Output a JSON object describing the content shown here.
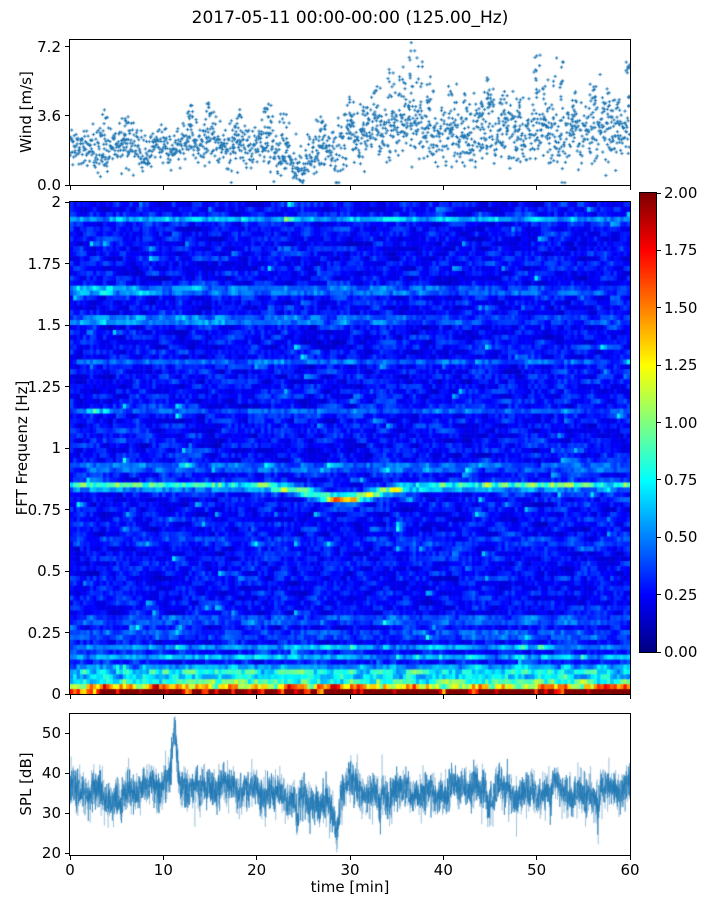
{
  "title": "2017-05-11 00:00-00:00 (125.00_Hz)",
  "chart_data": [
    {
      "id": "wind",
      "type": "scatter",
      "marker": "+",
      "marker_color": "#1f77b4",
      "x_range": [
        0,
        60
      ],
      "y_range": [
        0,
        7.56
      ],
      "ylabel": "Wind [m/s]",
      "ytick_values": [
        0.0,
        3.6,
        7.2
      ],
      "ytick_labels": [
        "0.0",
        "3.6",
        "7.2"
      ],
      "approx_n_points": 1700,
      "trend_per_min": [
        2.1,
        1.9,
        2.0,
        1.7,
        1.5,
        1.9,
        2.3,
        2.1,
        1.7,
        2.0,
        2.2,
        1.8,
        2.1,
        2.4,
        2.0,
        2.4,
        2.2,
        1.8,
        2.0,
        2.2,
        2.0,
        2.3,
        1.8,
        1.5,
        1.1,
        1.0,
        1.5,
        1.9,
        1.6,
        2.1,
        2.5,
        2.3,
        2.7,
        2.9,
        2.7,
        3.0,
        3.2,
        3.1,
        2.7,
        2.4,
        2.6,
        2.8,
        2.4,
        2.6,
        2.7,
        2.9,
        2.6,
        2.8,
        2.4,
        2.6,
        2.9,
        2.8,
        2.4,
        2.2,
        2.6,
        2.8,
        3.0,
        2.8,
        2.6,
        2.8,
        3.1
      ],
      "scatter_spread": {
        "t_split": 28,
        "early": 0.55,
        "late": 0.8
      },
      "gusts": [
        [
          3.5,
          3.8
        ],
        [
          6,
          3.6
        ],
        [
          13,
          4.4
        ],
        [
          15,
          4.5
        ],
        [
          18,
          3.9
        ],
        [
          21,
          4.3
        ],
        [
          23,
          3.7
        ],
        [
          27,
          3.6
        ],
        [
          30,
          4.6
        ],
        [
          31.5,
          4.2
        ],
        [
          33,
          5.3
        ],
        [
          34.5,
          5.9
        ],
        [
          35.5,
          6.3
        ],
        [
          36.5,
          7.2
        ],
        [
          37.5,
          6.6
        ],
        [
          38.5,
          5.6
        ],
        [
          41,
          5.3
        ],
        [
          42.5,
          4.8
        ],
        [
          44,
          4.6
        ],
        [
          45,
          5.6
        ],
        [
          46.5,
          5.0
        ],
        [
          48,
          4.5
        ],
        [
          50,
          6.9
        ],
        [
          51,
          5.4
        ],
        [
          52.5,
          6.8
        ],
        [
          54,
          4.7
        ],
        [
          56,
          5.7
        ],
        [
          57.5,
          5.0
        ],
        [
          58.5,
          4.6
        ],
        [
          59.8,
          6.5
        ]
      ]
    },
    {
      "id": "spectrogram",
      "type": "heatmap",
      "colormap": "jet",
      "x_range": [
        0,
        60
      ],
      "y_range": [
        0,
        2
      ],
      "value_range": [
        0,
        2
      ],
      "ylabel": "FFT Frequenz [Hz]",
      "ytick_values": [
        0,
        0.25,
        0.5,
        0.75,
        1,
        1.25,
        1.5,
        1.75,
        2
      ],
      "ytick_labels": [
        "0",
        "0.25",
        "0.5",
        "0.75",
        "1",
        "1.25",
        "1.5",
        "1.75",
        "2"
      ],
      "grid": {
        "cols": 170,
        "rows": 100
      },
      "background": {
        "base": 0.12,
        "noise": 0.4,
        "streak_prob": 0.012,
        "streak_gain": 0.5
      },
      "bands": [
        {
          "f": 1.93,
          "w": 0.01,
          "amp": 0.28
        },
        {
          "f": 1.64,
          "w": 0.012,
          "amp": 0.5,
          "fade": "left"
        },
        {
          "f": 1.52,
          "w": 0.012,
          "amp": 0.4,
          "fade": "left"
        },
        {
          "f": 1.35,
          "w": 0.01,
          "amp": 0.15
        },
        {
          "f": 1.15,
          "w": 0.01,
          "amp": 0.15
        },
        {
          "f": 0.92,
          "w": 0.012,
          "amp": 0.3
        },
        {
          "f": 0.845,
          "w": 0.016,
          "amp": 0.6,
          "drift": {
            "t": 29,
            "df": -0.05,
            "tw": 5
          },
          "boost": {
            "t": 29,
            "amp": 0.8,
            "tw": 4
          }
        },
        {
          "f": 0.62,
          "w": 0.01,
          "amp": 0.12
        },
        {
          "f": 0.3,
          "w": 0.01,
          "amp": 0.3
        },
        {
          "f": 0.24,
          "w": 0.01,
          "amp": 0.28
        },
        {
          "f": 0.185,
          "w": 0.01,
          "amp": 0.32
        },
        {
          "f": 0.15,
          "w": 0.008,
          "amp": 0.3
        },
        {
          "f": 0.115,
          "w": 0.008,
          "amp": 0.38
        },
        {
          "f": 0.09,
          "w": 0.008,
          "amp": 0.45
        },
        {
          "f": 0.065,
          "w": 0.008,
          "amp": 0.55
        },
        {
          "f": 0.045,
          "w": 0.008,
          "amp": 0.75
        },
        {
          "f": 0.028,
          "w": 0.007,
          "amp": 1.0
        },
        {
          "f": 0.01,
          "w": 0.009,
          "amp": 1.7
        }
      ],
      "colorbar": {
        "tick_values": [
          0,
          0.25,
          0.5,
          0.75,
          1,
          1.25,
          1.5,
          1.75,
          2
        ],
        "tick_labels": [
          "0.00",
          "0.25",
          "0.50",
          "0.75",
          "1.00",
          "1.25",
          "1.50",
          "1.75",
          "2.00"
        ]
      }
    },
    {
      "id": "spl",
      "type": "line",
      "line_color": "#1f77b4",
      "x_range": [
        0,
        60
      ],
      "y_range": [
        19.5,
        54.75
      ],
      "ylabel": "SPL [dB]",
      "ytick_values": [
        20,
        30,
        40,
        50
      ],
      "ytick_labels": [
        "20",
        "30",
        "40",
        "50"
      ],
      "xlabel": "time [min]",
      "xtick_values": [
        0,
        10,
        20,
        30,
        40,
        50,
        60
      ],
      "xtick_labels": [
        "0",
        "10",
        "20",
        "30",
        "40",
        "50",
        "60"
      ],
      "trend_per_min": [
        36,
        36.5,
        36,
        35,
        34,
        33.5,
        35,
        36,
        36.5,
        36,
        37.5,
        40,
        37.5,
        36,
        36.5,
        37,
        36,
        37,
        36,
        35.5,
        36,
        34.5,
        35,
        34,
        33.5,
        33,
        33.5,
        32,
        30.5,
        36.5,
        38,
        36,
        35,
        34.5,
        35,
        36,
        35.5,
        35,
        35.5,
        34.5,
        35,
        36,
        36.5,
        37,
        35.5,
        35,
        36.5,
        35,
        34.5,
        35,
        34,
        36,
        37,
        35.5,
        34.5,
        34,
        35.5,
        36,
        36,
        36.5,
        36.5,
        37
      ],
      "noise_sd": 2.1,
      "spikes": [
        [
          11.2,
          10,
          0.3
        ]
      ],
      "dips": [
        [
          5.4,
          -4,
          0.2
        ],
        [
          13.9,
          -4.5,
          0.15
        ],
        [
          24.4,
          -5,
          0.2
        ],
        [
          28.6,
          -9,
          0.3
        ],
        [
          33.2,
          -4,
          0.18
        ],
        [
          44.8,
          -4,
          0.18
        ],
        [
          51.5,
          -3.5,
          0.18
        ],
        [
          56.6,
          -4,
          0.16
        ]
      ]
    }
  ]
}
